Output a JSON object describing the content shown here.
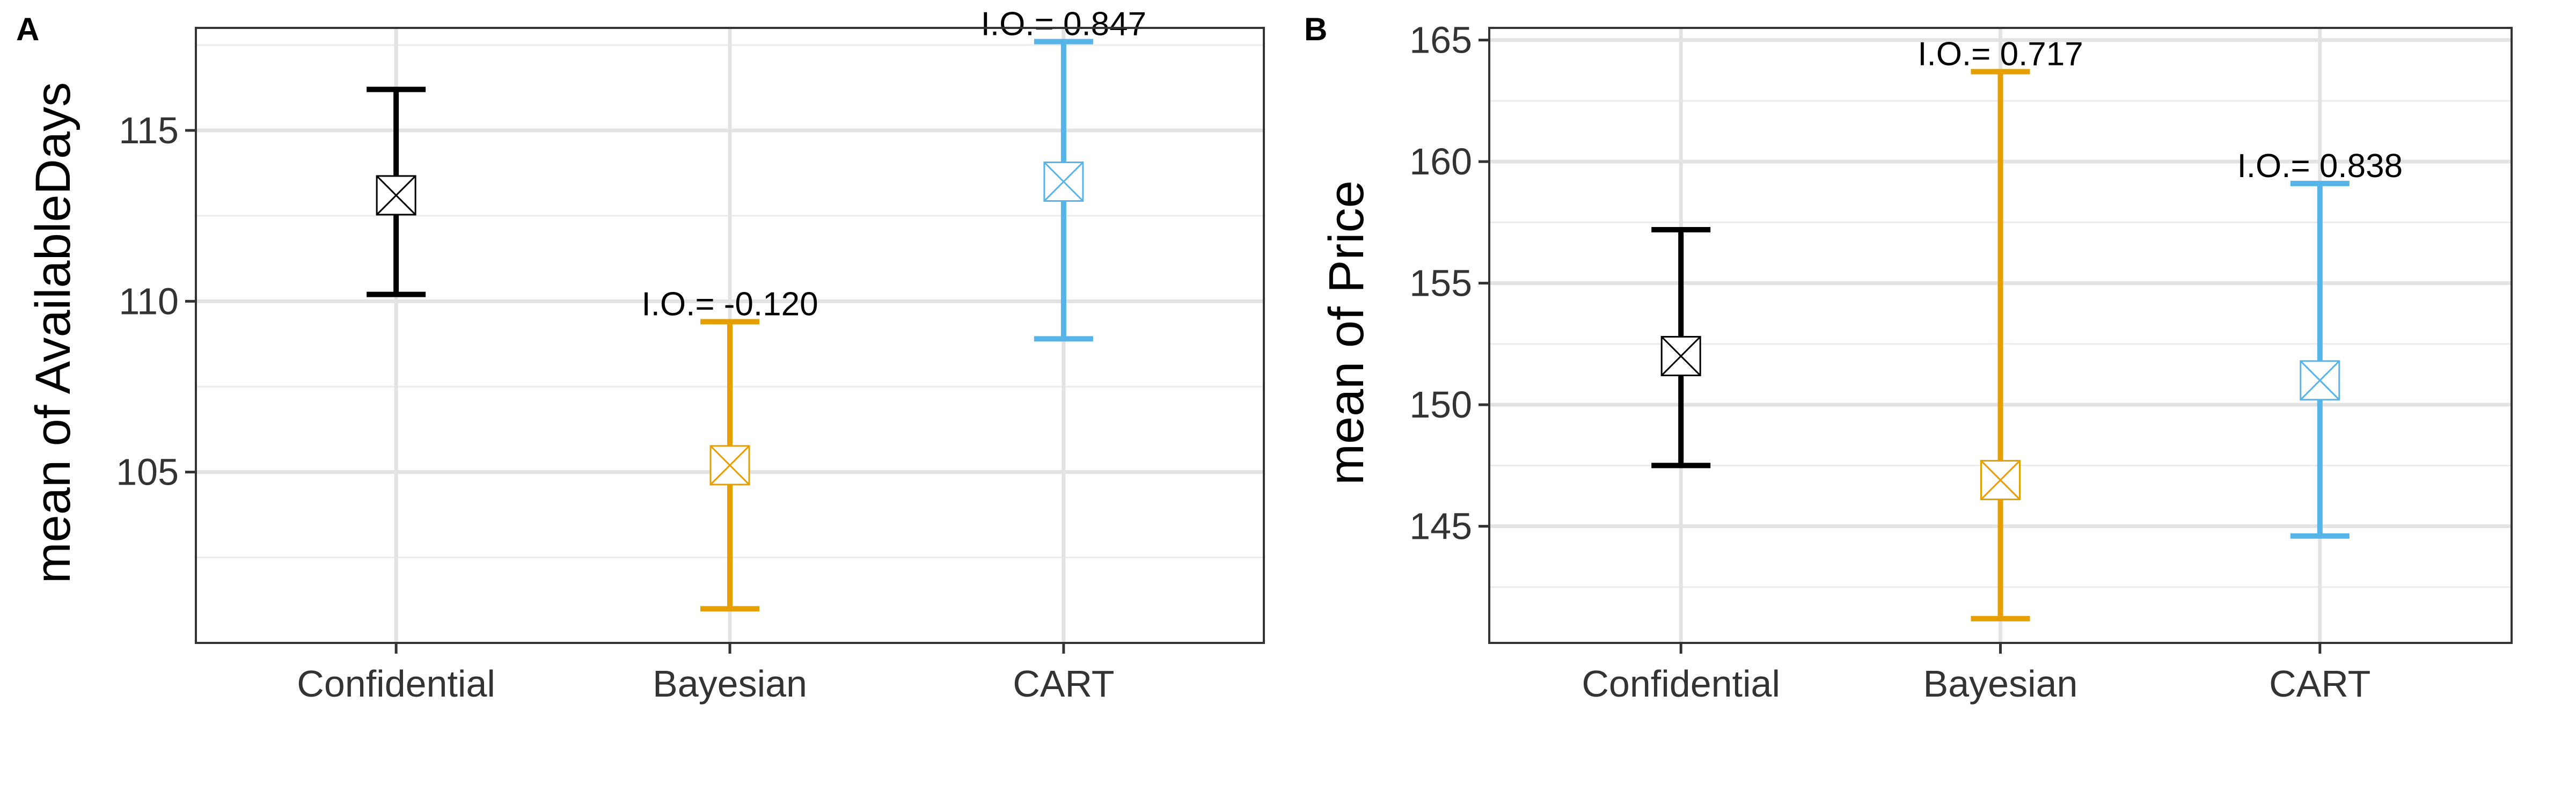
{
  "chart_data": [
    {
      "type": "errorbar",
      "panel": "A",
      "ylabel": "mean of AvailableDays",
      "categories": [
        "Confidential",
        "Bayesian",
        "CART"
      ],
      "ylim": [
        100.0,
        118.0
      ],
      "yticks": [
        105,
        110,
        115
      ],
      "grid": true,
      "points": [
        {
          "category": "Confidential",
          "mean": 113.1,
          "lower": 110.2,
          "upper": 116.2,
          "color": "#000000",
          "io": ""
        },
        {
          "category": "Bayesian",
          "mean": 105.2,
          "lower": 101.0,
          "upper": 109.4,
          "color": "#E69F00",
          "io": "I.O.= -0.120"
        },
        {
          "category": "CART",
          "mean": 113.5,
          "lower": 108.9,
          "upper": 117.6,
          "color": "#56B4E9",
          "io": "I.O.= 0.847"
        }
      ]
    },
    {
      "type": "errorbar",
      "panel": "B",
      "ylabel": "mean of Price",
      "categories": [
        "Confidential",
        "Bayesian",
        "CART"
      ],
      "ylim": [
        140.2,
        165.5
      ],
      "yticks": [
        145,
        150,
        155,
        160,
        165
      ],
      "grid": true,
      "points": [
        {
          "category": "Confidential",
          "mean": 152.0,
          "lower": 147.5,
          "upper": 157.2,
          "color": "#000000",
          "io": ""
        },
        {
          "category": "Bayesian",
          "mean": 146.9,
          "lower": 141.2,
          "upper": 163.7,
          "color": "#E69F00",
          "io": "I.O.= 0.717"
        },
        {
          "category": "CART",
          "mean": 151.0,
          "lower": 144.6,
          "upper": 159.1,
          "color": "#56B4E9",
          "io": "I.O.= 0.838"
        }
      ]
    }
  ]
}
